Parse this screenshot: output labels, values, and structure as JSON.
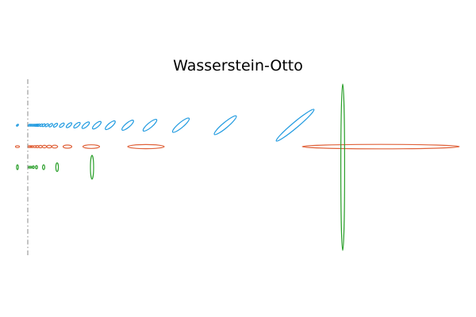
{
  "title": "Wasserstein-Otto",
  "colors": {
    "background": "#ffffff",
    "reference_line": "#888888",
    "top_row": "#1f9ae0",
    "middle_row": "#e0623a",
    "bottom_row": "#2ca02c"
  }
}
